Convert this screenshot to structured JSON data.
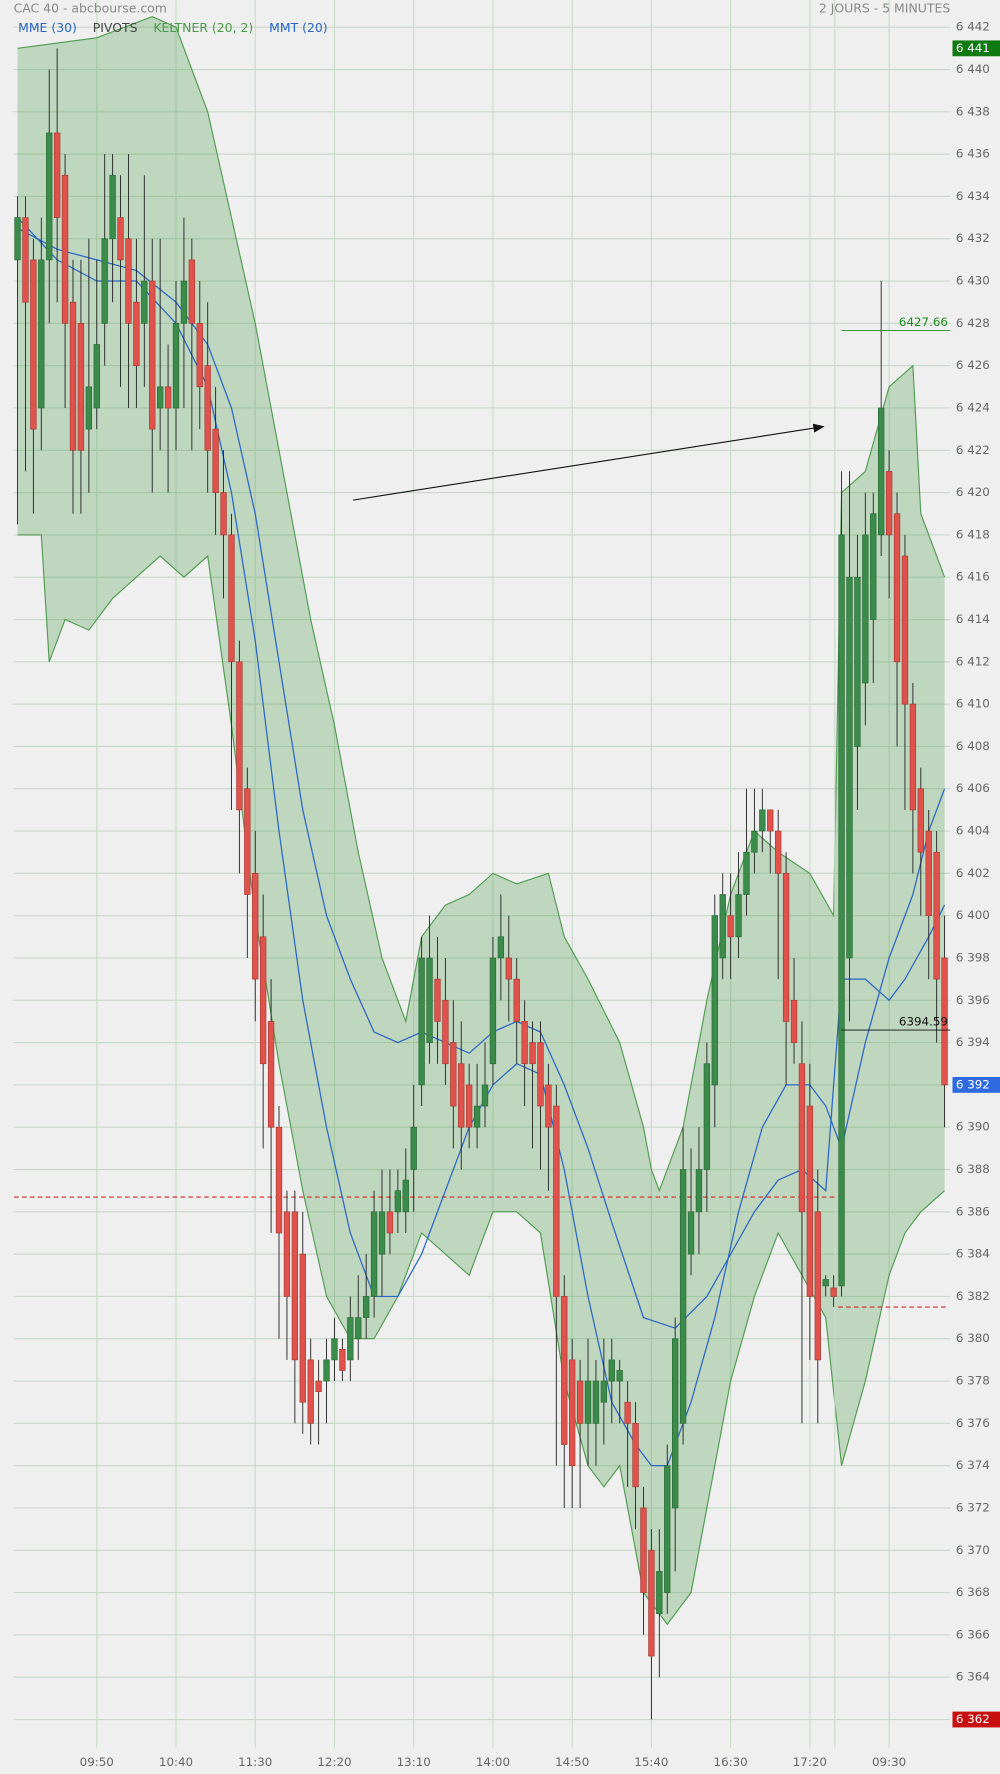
{
  "chart_data": {
    "type": "candlestick",
    "title": "CAC 40 - abcbourse.com",
    "subtitle": "2 JOURS - 5 MINUTES",
    "xlim": [
      -0.5,
      117.5
    ],
    "ylim": [
      6360.66,
      6443.28
    ],
    "grid": true,
    "xticks": [
      {
        "value": 10,
        "label": "09:50"
      },
      {
        "value": 20,
        "label": "10:40"
      },
      {
        "value": 30,
        "label": "11:30"
      },
      {
        "value": 40,
        "label": "12:20"
      },
      {
        "value": 50,
        "label": "13:10"
      },
      {
        "value": 60,
        "label": "14:00"
      },
      {
        "value": 70,
        "label": "14:50"
      },
      {
        "value": 80,
        "label": "15:40"
      },
      {
        "value": 90,
        "label": "16:30"
      },
      {
        "value": 100,
        "label": "17:20"
      },
      {
        "value": 110,
        "label": "09:30"
      }
    ],
    "yticks": [
      {
        "value": 6362,
        "label": "6 362"
      },
      {
        "value": 6364,
        "label": "6 364"
      },
      {
        "value": 6366,
        "label": "6 366"
      },
      {
        "value": 6368,
        "label": "6 368"
      },
      {
        "value": 6370,
        "label": "6 370"
      },
      {
        "value": 6372,
        "label": "6 372"
      },
      {
        "value": 6374,
        "label": "6 374"
      },
      {
        "value": 6376,
        "label": "6 376"
      },
      {
        "value": 6378,
        "label": "6 378"
      },
      {
        "value": 6380,
        "label": "6 380"
      },
      {
        "value": 6382,
        "label": "6 382"
      },
      {
        "value": 6384,
        "label": "6 384"
      },
      {
        "value": 6386,
        "label": "6 386"
      },
      {
        "value": 6388,
        "label": "6 388"
      },
      {
        "value": 6390,
        "label": "6 390"
      },
      {
        "value": 6392,
        "label": "6 392"
      },
      {
        "value": 6394,
        "label": "6 394"
      },
      {
        "value": 6396,
        "label": "6 396"
      },
      {
        "value": 6398,
        "label": "6 398"
      },
      {
        "value": 6400,
        "label": "6 400"
      },
      {
        "value": 6402,
        "label": "6 402"
      },
      {
        "value": 6404,
        "label": "6 404"
      },
      {
        "value": 6406,
        "label": "6 406"
      },
      {
        "value": 6408,
        "label": "6 408"
      },
      {
        "value": 6410,
        "label": "6 410"
      },
      {
        "value": 6412,
        "label": "6 412"
      },
      {
        "value": 6414,
        "label": "6 414"
      },
      {
        "value": 6416,
        "label": "6 416"
      },
      {
        "value": 6418,
        "label": "6 418"
      },
      {
        "value": 6420,
        "label": "6 420"
      },
      {
        "value": 6422,
        "label": "6 422"
      },
      {
        "value": 6424,
        "label": "6 424"
      },
      {
        "value": 6426,
        "label": "6 426"
      },
      {
        "value": 6428,
        "label": "6 428"
      },
      {
        "value": 6430,
        "label": "6 430"
      },
      {
        "value": 6432,
        "label": "6 432"
      },
      {
        "value": 6434,
        "label": "6 434"
      },
      {
        "value": 6436,
        "label": "6 436"
      },
      {
        "value": 6438,
        "label": "6 438"
      },
      {
        "value": 6440,
        "label": "6 440"
      },
      {
        "value": 6442,
        "label": "6 442"
      }
    ],
    "candles": {
      "up_color": "#3b8b4b",
      "down_color": "#e0524c",
      "open": [
        6431,
        6433,
        6431,
        6424,
        6431,
        6437,
        6435,
        6429,
        6428,
        6423,
        6424,
        6428,
        6432,
        6433,
        6432,
        6429,
        6428,
        6430,
        6424,
        6425,
        6424,
        6428,
        6431,
        6428,
        6426,
        6423,
        6420,
        6418,
        6412,
        6406,
        6402,
        6399,
        6395,
        6390,
        6386,
        6386,
        6384,
        6379,
        6378,
        6378,
        6379,
        6379.5,
        6379,
        6380,
        6381,
        6382,
        6384,
        6386,
        6386,
        6386,
        6388,
        6392,
        6394,
        6397,
        6396,
        6394,
        6393,
        6392,
        6390,
        6391,
        6393,
        6398,
        6398,
        6397,
        6395,
        6394,
        6394,
        6392,
        6391,
        6382,
        6379,
        6378,
        6376,
        6376,
        6377,
        6378,
        6378,
        6377,
        6376,
        6372,
        6370,
        6367,
        6368,
        6372,
        6376,
        6384,
        6386,
        6388,
        6392,
        6398,
        6400,
        6399,
        6401,
        6403,
        6404,
        6405,
        6404,
        6402,
        6396,
        6393,
        6391,
        6386,
        6382.5,
        6382.4,
        6382.5,
        6398,
        6408,
        6411,
        6414,
        6418,
        6421,
        6419,
        6417,
        6410,
        6406,
        6404,
        6403,
        6398
      ],
      "high": [
        6434,
        6434,
        6432,
        6433,
        6440,
        6441,
        6436,
        6431,
        6431,
        6432,
        6431,
        6436,
        6436,
        6435,
        6436,
        6432,
        6435,
        6432,
        6432,
        6427,
        6430,
        6433,
        6432,
        6430,
        6429,
        6425,
        6422,
        6419,
        6413,
        6407,
        6404,
        6401,
        6397,
        6391,
        6387,
        6387,
        6386,
        6380,
        6379,
        6380,
        6381,
        6380,
        6382,
        6383,
        6384,
        6387,
        6388,
        6388,
        6388,
        6389,
        6392,
        6399,
        6400,
        6399,
        6398,
        6396,
        6395,
        6393,
        6393,
        6394,
        6399,
        6401,
        6400,
        6398,
        6396,
        6395,
        6395,
        6393,
        6392,
        6383,
        6380,
        6379,
        6380,
        6379,
        6380,
        6380,
        6379,
        6378,
        6377,
        6373,
        6371,
        6371,
        6375,
        6381,
        6390,
        6389,
        6390,
        6394,
        6401,
        6402,
        6402,
        6403,
        6406,
        6406,
        6406,
        6405,
        6405,
        6403,
        6398,
        6395,
        6393,
        6388,
        6383,
        6383,
        6421,
        6421,
        6418,
        6420,
        6420,
        6430,
        6422,
        6420,
        6418,
        6411,
        6407,
        6405,
        6404,
        6400
      ],
      "low": [
        6418.5,
        6421,
        6419,
        6422,
        6428,
        6429,
        6424,
        6419,
        6419,
        6420,
        6423,
        6426,
        6429,
        6425,
        6424,
        6424,
        6425,
        6420,
        6422,
        6420,
        6422,
        6424,
        6422,
        6423,
        6420,
        6418,
        6415,
        6405,
        6402,
        6398,
        6395,
        6389,
        6385,
        6380,
        6379,
        6376,
        6375.5,
        6375,
        6375,
        6376,
        6378,
        6378,
        6378,
        6379,
        6380,
        6381,
        6382,
        6384,
        6385,
        6385,
        6386,
        6391,
        6393,
        6393,
        6392,
        6389,
        6388,
        6389,
        6389,
        6390,
        6392,
        6396,
        6395,
        6393,
        6391,
        6389,
        6388,
        6387,
        6374,
        6372,
        6372,
        6372,
        6374,
        6374,
        6375,
        6376,
        6376,
        6373,
        6371,
        6366,
        6362,
        6364,
        6367,
        6369,
        6375,
        6383,
        6384,
        6386,
        6390,
        6397,
        6397,
        6398,
        6400,
        6402,
        6403,
        6402,
        6397,
        6392,
        6393,
        6376,
        6379,
        6376,
        6382,
        6381.5,
        6382,
        6395,
        6405,
        6409,
        6411,
        6417,
        6415,
        6408,
        6405,
        6402,
        6400,
        6397,
        6394,
        6390
      ],
      "close": [
        6433,
        6429,
        6423,
        6431,
        6437,
        6433,
        6428,
        6422,
        6422,
        6425,
        6427,
        6432,
        6435,
        6431,
        6428,
        6426,
        6430,
        6423,
        6425,
        6424,
        6428,
        6430,
        6428,
        6425,
        6422,
        6420,
        6418,
        6412,
        6405,
        6401,
        6397,
        6393,
        6390,
        6385,
        6382,
        6379,
        6377,
        6376,
        6377.5,
        6379,
        6380,
        6378.5,
        6381,
        6381,
        6382,
        6386,
        6386,
        6385,
        6387,
        6387.5,
        6390,
        6398,
        6398,
        6395,
        6393,
        6391,
        6390,
        6390,
        6391,
        6392,
        6398,
        6399,
        6397,
        6395,
        6393,
        6393,
        6391,
        6390,
        6382,
        6375,
        6374,
        6376,
        6378,
        6378,
        6378,
        6379,
        6378.5,
        6376,
        6373,
        6368,
        6365,
        6369,
        6374,
        6380,
        6388,
        6386,
        6388,
        6393,
        6400,
        6401,
        6399,
        6401,
        6403,
        6404,
        6405,
        6404,
        6402,
        6395,
        6394,
        6386,
        6382,
        6379,
        6382.8,
        6382,
        6418,
        6416,
        6416,
        6418,
        6419,
        6424,
        6418,
        6412,
        6410,
        6405,
        6403,
        6400,
        6397,
        6392
      ]
    },
    "band": {
      "name": "KELTNER (20, 2)",
      "color": "#4f9a4f",
      "upper": {
        "x": [
          0,
          10,
          17,
          20,
          24,
          27,
          30,
          33,
          37,
          40,
          43,
          46,
          49,
          51,
          54,
          57,
          60,
          63,
          67,
          69,
          72,
          76,
          79,
          80,
          81,
          84,
          87,
          90,
          93,
          96,
          100,
          103,
          104,
          107,
          110,
          113,
          114,
          117
        ],
        "values": [
          6441,
          6441.5,
          6442.5,
          6442,
          6438,
          6433,
          6428,
          6422,
          6414,
          6409,
          6403,
          6398,
          6395,
          6399,
          6400.5,
          6401,
          6402,
          6401.5,
          6402,
          6399,
          6397,
          6394,
          6390,
          6388,
          6387,
          6390,
          6396,
          6401,
          6404,
          6403,
          6402,
          6400,
          6420,
          6421,
          6425,
          6426,
          6419,
          6416
        ]
      },
      "lower": {
        "x": [
          0,
          3,
          4,
          6,
          9,
          12,
          15,
          18,
          21,
          24,
          27,
          30,
          33,
          36,
          39,
          42,
          45,
          48,
          51,
          54,
          57,
          60,
          63,
          66,
          69,
          72,
          74,
          76,
          79,
          82,
          85,
          87,
          90,
          93,
          96,
          99,
          102,
          104,
          107,
          110,
          112,
          114,
          117
        ],
        "values": [
          6418,
          6418,
          6412,
          6414,
          6413.5,
          6415,
          6416,
          6417,
          6416,
          6417,
          6409,
          6400,
          6393,
          6387,
          6382,
          6380,
          6380,
          6382,
          6385,
          6384,
          6383,
          6386,
          6386,
          6385,
          6378,
          6374,
          6373,
          6374,
          6368,
          6366.5,
          6368,
          6372,
          6378,
          6382,
          6385,
          6383,
          6381,
          6374,
          6378,
          6383,
          6385,
          6386,
          6387
        ]
      }
    },
    "series": [
      {
        "name": "MME (30)",
        "color": "#2a66c4",
        "x": [
          0,
          5,
          10,
          15,
          20,
          24,
          27,
          30,
          33,
          36,
          39,
          42,
          45,
          48,
          51,
          54,
          57,
          60,
          63,
          66,
          69,
          72,
          75,
          79,
          83,
          87,
          90,
          93,
          96,
          99,
          102,
          104,
          107,
          110,
          112,
          115,
          117
        ],
        "values": [
          6432.5,
          6431.5,
          6431,
          6430.5,
          6429,
          6427,
          6424,
          6419,
          6412,
          6405,
          6400,
          6397,
          6394.5,
          6394,
          6394.5,
          6394,
          6393.5,
          6394.5,
          6395,
          6394.5,
          6392,
          6389,
          6385.5,
          6381,
          6380.5,
          6382,
          6384,
          6386,
          6387.5,
          6388,
          6387,
          6397,
          6397,
          6396,
          6397,
          6399,
          6400.5
        ]
      },
      {
        "name": "MMT (20)",
        "color": "#2a66c4",
        "x": [
          0,
          5,
          10,
          15,
          20,
          24,
          27,
          30,
          33,
          36,
          39,
          42,
          45,
          48,
          51,
          54,
          57,
          60,
          63,
          66,
          69,
          72,
          75,
          78,
          80,
          82,
          85,
          88,
          91,
          94,
          97,
          100,
          102,
          103,
          104,
          107,
          110,
          113,
          115,
          117
        ],
        "values": [
          6433,
          6431,
          6430,
          6430,
          6428,
          6425,
          6420,
          6413,
          6404,
          6396,
          6390,
          6385,
          6382,
          6382,
          6384,
          6387,
          6390,
          6392,
          6393,
          6392.5,
          6388,
          6382,
          6377,
          6375,
          6374,
          6374,
          6377,
          6381,
          6386,
          6390,
          6392,
          6392,
          6391,
          6390,
          6389,
          6394,
          6398,
          6401,
          6404,
          6406
        ]
      }
    ],
    "pivots": {
      "name": "PIVOTS",
      "color": "#d62020",
      "lines": [
        {
          "value": 6386.7,
          "x": [
            0,
            103
          ]
        },
        {
          "value": 6381.5,
          "x": [
            104,
            117
          ]
        }
      ]
    },
    "levels": [
      {
        "value": 6427.66,
        "label": "6427.66",
        "color": "#1f8a1f"
      },
      {
        "value": 6394.59,
        "label": "6394.59",
        "color": "#111111"
      }
    ],
    "price_tags": [
      {
        "value": 6441,
        "label": "6 441",
        "color": "#0f7a12"
      },
      {
        "value": 6392,
        "label": "6 392",
        "color": "#2f6be0"
      },
      {
        "value": 6362,
        "label": "6 362",
        "color": "#c81010"
      }
    ]
  }
}
